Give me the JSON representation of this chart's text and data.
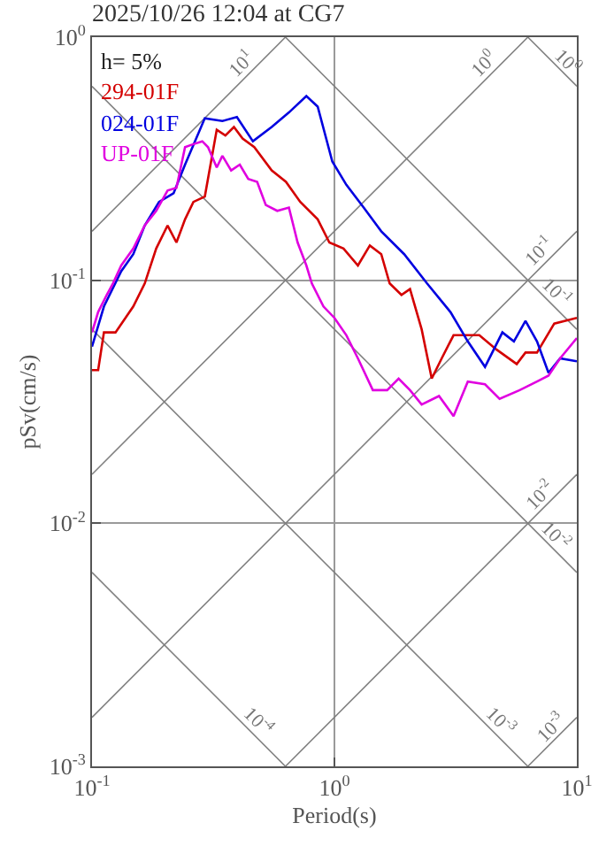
{
  "chart_data": {
    "type": "line",
    "title": "2025/10/26 12:04 at CG7",
    "xlabel": "Period(s)",
    "ylabel": "pSv(cm/s)",
    "log": "xy",
    "grid": true,
    "legend": "top left",
    "xlim": [
      0.1,
      10
    ],
    "xticks": [
      {
        "value": 0.1,
        "label": "10$^{-1}$"
      },
      {
        "value": 1,
        "label": "10$^{0}$"
      },
      {
        "value": 10,
        "label": "10$^{1}$"
      }
    ],
    "ylim": [
      0.001,
      1
    ],
    "yticks": [
      {
        "value": 0.001,
        "label": "10$^{-3}$"
      },
      {
        "value": 0.01,
        "label": "10$^{-2}$"
      },
      {
        "value": 0.1,
        "label": "10$^{-1}$"
      },
      {
        "value": 1,
        "label": "10$^{0}$"
      }
    ],
    "annotations": [
      "h= 5%",
      {
        "text": "10$^{-4}$",
        "x": 0.45,
        "y": 0.0014
      },
      {
        "text": "10$^{-3}$",
        "x": 4.5,
        "y": 0.0014
      },
      {
        "text": "10$^{-2}$",
        "x": 7.6,
        "y": 0.00826
      },
      {
        "text": "10$^{-1}$",
        "x": 7.6,
        "y": 0.0826
      },
      {
        "text": "10$^{0}$",
        "x": 8.5,
        "y": 0.739
      },
      {
        "text": "10$^{-3}$",
        "x": 8.5,
        "y": 0.00135
      },
      {
        "text": "10$^{-2}$",
        "x": 7.6,
        "y": 0.0121
      },
      {
        "text": "10$^{-1}$",
        "x": 7.6,
        "y": 0.121
      },
      {
        "text": "10$^{0}$",
        "x": 4.5,
        "y": 0.716
      },
      {
        "text": "10$^{1}$",
        "x": 0.45,
        "y": 0.716
      }
    ],
    "series": [
      {
        "color": "#808080",
        "x": [
          0.1,
          0.628
        ],
        "values": [
          0.00628,
          0.001
        ]
      },
      {
        "color": "#808080",
        "x": [
          0.1,
          6.28
        ],
        "values": [
          0.0628,
          0.001
        ]
      },
      {
        "color": "#808080",
        "x": [
          0.1,
          10
        ],
        "values": [
          0.628,
          0.00628
        ]
      },
      {
        "color": "#808080",
        "x": [
          0.628,
          10
        ],
        "values": [
          1,
          0.0628
        ]
      },
      {
        "color": "#808080",
        "x": [
          6.28,
          10
        ],
        "values": [
          1,
          0.628
        ]
      },
      {
        "color": "#808080",
        "x": [
          6.28,
          10
        ],
        "values": [
          0.001,
          0.00159
        ]
      },
      {
        "color": "#808080",
        "x": [
          0.628,
          10
        ],
        "values": [
          0.001,
          0.0159
        ]
      },
      {
        "color": "#808080",
        "x": [
          0.1,
          10
        ],
        "values": [
          0.00159,
          0.159
        ]
      },
      {
        "color": "#808080",
        "x": [
          0.1,
          6.28
        ],
        "values": [
          0.0159,
          1
        ]
      },
      {
        "color": "#808080",
        "x": [
          0.1,
          0.628
        ],
        "values": [
          0.159,
          1
        ]
      },
      {
        "name": "294-01F",
        "color": "#d40000",
        "x": [
          0.1,
          0.106,
          0.112,
          0.125,
          0.148,
          0.165,
          0.184,
          0.205,
          0.223,
          0.242,
          0.262,
          0.292,
          0.327,
          0.355,
          0.385,
          0.418,
          0.467,
          0.551,
          0.631,
          0.723,
          0.853,
          0.953,
          1.09,
          1.25,
          1.4,
          1.56,
          1.69,
          1.89,
          2.05,
          2.29,
          2.52,
          2.77,
          3.1,
          3.55,
          3.96,
          4.67,
          5.65,
          6.14,
          6.85,
          8.07,
          10
        ],
        "values": [
          0.0427,
          0.0427,
          0.061,
          0.061,
          0.078,
          0.097,
          0.135,
          0.168,
          0.143,
          0.178,
          0.21,
          0.221,
          0.416,
          0.394,
          0.427,
          0.383,
          0.353,
          0.283,
          0.254,
          0.21,
          0.178,
          0.143,
          0.135,
          0.115,
          0.139,
          0.128,
          0.097,
          0.087,
          0.092,
          0.0628,
          0.0394,
          0.0477,
          0.0594,
          0.0594,
          0.0594,
          0.0518,
          0.0452,
          0.0504,
          0.0504,
          0.0663,
          0.07
        ]
      },
      {
        "name": "024-01F",
        "color": "#0000e0",
        "x": [
          0.1,
          0.112,
          0.132,
          0.148,
          0.165,
          0.189,
          0.217,
          0.242,
          0.292,
          0.345,
          0.396,
          0.461,
          0.551,
          0.649,
          0.766,
          0.853,
          0.98,
          1.12,
          1.32,
          1.56,
          1.94,
          2.41,
          3.01,
          3.55,
          4.18,
          4.93,
          5.5,
          6.14,
          6.85,
          7.64,
          8.53,
          10
        ],
        "values": [
          0.0533,
          0.078,
          0.109,
          0.128,
          0.168,
          0.21,
          0.228,
          0.299,
          0.464,
          0.452,
          0.469,
          0.373,
          0.427,
          0.49,
          0.572,
          0.518,
          0.308,
          0.247,
          0.199,
          0.159,
          0.128,
          0.097,
          0.074,
          0.056,
          0.044,
          0.061,
          0.056,
          0.068,
          0.056,
          0.0416,
          0.0477,
          0.0464
        ]
      },
      {
        "name": "UP-01F",
        "color": "#e000e0",
        "x": [
          0.1,
          0.106,
          0.115,
          0.122,
          0.132,
          0.148,
          0.165,
          0.184,
          0.205,
          0.223,
          0.242,
          0.262,
          0.285,
          0.301,
          0.327,
          0.345,
          0.375,
          0.407,
          0.441,
          0.48,
          0.521,
          0.581,
          0.649,
          0.705,
          0.766,
          0.807,
          0.901,
          1.0,
          1.12,
          1.25,
          1.44,
          1.65,
          1.84,
          2.05,
          2.29,
          2.7,
          3.1,
          3.55,
          4.18,
          4.8,
          5.81,
          6.85,
          7.64,
          8.53,
          10
        ],
        "values": [
          0.061,
          0.074,
          0.087,
          0.097,
          0.115,
          0.135,
          0.168,
          0.193,
          0.234,
          0.24,
          0.353,
          0.363,
          0.373,
          0.353,
          0.291,
          0.325,
          0.283,
          0.299,
          0.261,
          0.254,
          0.204,
          0.193,
          0.199,
          0.143,
          0.115,
          0.097,
          0.078,
          0.07,
          0.0594,
          0.0477,
          0.0353,
          0.0353,
          0.0394,
          0.0353,
          0.0308,
          0.0334,
          0.0276,
          0.0383,
          0.0373,
          0.0325,
          0.0353,
          0.0383,
          0.0405,
          0.0477,
          0.0578
        ]
      }
    ]
  }
}
